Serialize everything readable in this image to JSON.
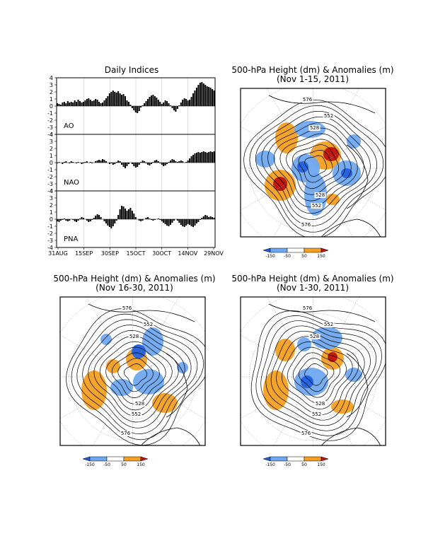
{
  "chart_data": [
    {
      "type": "bar",
      "title": "Daily Indices",
      "x_tick_labels": [
        "31AUG",
        "15SEP",
        "30SEP",
        "15OCT",
        "30OCT",
        "14NOV",
        "29NOV"
      ],
      "ylim": [
        -4,
        4
      ],
      "y_tick_labels": [
        "4",
        "3",
        "2",
        "1",
        "0",
        "-1",
        "-2",
        "-3",
        "-4"
      ],
      "grid": true,
      "series": [
        {
          "name": "AO",
          "values": [
            0.4,
            0.3,
            0.2,
            0.5,
            0.6,
            0.4,
            0.7,
            0.5,
            0.6,
            0.5,
            0.8,
            0.6,
            0.9,
            0.7,
            0.5,
            0.6,
            0.8,
            1.0,
            1.1,
            0.9,
            0.7,
            0.8,
            1.0,
            0.9,
            0.6,
            0.4,
            0.5,
            0.8,
            1.1,
            1.4,
            1.8,
            2.0,
            2.2,
            2.0,
            1.9,
            2.1,
            1.8,
            1.6,
            1.7,
            1.4,
            0.8,
            0.6,
            0.2,
            -0.3,
            -0.6,
            -0.9,
            -1.0,
            -0.7,
            -0.2,
            0.1,
            0.4,
            0.7,
            1.0,
            1.3,
            1.5,
            1.6,
            1.4,
            1.2,
            0.9,
            0.6,
            0.3,
            0.5,
            0.8,
            0.7,
            0.4,
            0.1,
            -0.3,
            -0.6,
            -0.8,
            -0.4,
            0.1,
            0.5,
            0.9,
            1.1,
            1.0,
            0.8,
            0.9,
            1.3,
            1.8,
            2.2,
            2.6,
            3.0,
            3.3,
            3.4,
            3.2,
            3.0,
            2.8,
            2.7,
            2.6,
            2.4,
            2.2
          ]
        },
        {
          "name": "NAO",
          "values": [
            -0.1,
            0.1,
            0.0,
            -0.2,
            0.1,
            0.2,
            0.0,
            -0.1,
            0.2,
            0.1,
            0.0,
            -0.1,
            0.1,
            0.0,
            -0.2,
            -0.1,
            0.1,
            0.2,
            0.0,
            0.1,
            -0.1,
            0.0,
            0.2,
            0.3,
            0.4,
            0.3,
            0.5,
            0.4,
            0.2,
            0.0,
            -0.2,
            -0.1,
            -0.3,
            -0.2,
            0.1,
            0.3,
            0.2,
            -0.3,
            -0.6,
            -0.8,
            -0.5,
            -0.2,
            0.0,
            -0.2,
            -0.5,
            -0.7,
            -0.6,
            -0.3,
            0.1,
            0.3,
            0.2,
            -0.1,
            -0.3,
            -0.4,
            -0.2,
            0.1,
            0.3,
            0.4,
            0.2,
            -0.1,
            -0.3,
            -0.5,
            -0.4,
            -0.2,
            0.1,
            0.3,
            0.5,
            0.4,
            0.2,
            0.1,
            0.2,
            0.3,
            0.2,
            0.0,
            0.1,
            0.3,
            0.6,
            0.9,
            1.1,
            1.3,
            1.4,
            1.5,
            1.4,
            1.5,
            1.6,
            1.5,
            1.4,
            1.5,
            1.6,
            1.5,
            1.6
          ]
        },
        {
          "name": "PNA",
          "values": [
            -0.3,
            -0.4,
            -0.2,
            -0.1,
            0.1,
            -0.2,
            -0.3,
            -0.2,
            0.0,
            -0.1,
            -0.3,
            -0.4,
            -0.2,
            0.1,
            0.3,
            0.2,
            0.0,
            -0.2,
            -0.4,
            -0.3,
            -0.1,
            0.2,
            0.5,
            0.7,
            0.6,
            0.3,
            0.0,
            -0.3,
            -0.6,
            -0.9,
            -1.1,
            -1.3,
            -1.0,
            -0.6,
            -0.2,
            0.6,
            1.4,
            1.9,
            1.8,
            1.5,
            1.2,
            1.4,
            1.6,
            1.2,
            0.8,
            0.3,
            0.0,
            -0.2,
            -0.3,
            -0.2,
            0.0,
            0.2,
            0.3,
            0.1,
            -0.1,
            -0.2,
            -0.1,
            0.0,
            0.1,
            -0.1,
            -0.3,
            -0.5,
            -0.7,
            -0.9,
            -1.0,
            -0.8,
            -0.5,
            -0.2,
            0.0,
            -0.2,
            -0.5,
            -0.8,
            -1.0,
            -1.1,
            -0.9,
            -0.7,
            -0.8,
            -1.0,
            -1.1,
            -0.9,
            -0.6,
            -0.4,
            -0.1,
            0.2,
            0.4,
            0.6,
            0.5,
            0.3,
            0.4,
            0.3,
            0.2
          ]
        }
      ]
    },
    {
      "type": "heatmap",
      "title": "500-hPa Height (dm) & Anomalies (m)",
      "subtitle": "(Nov 1-15, 2011)",
      "contour_labels": [
        "576",
        "552",
        "528",
        "528",
        "552",
        "576"
      ],
      "colorbar": {
        "labels": [
          "-150",
          "-50",
          "50",
          "150"
        ],
        "colors": [
          "#2060e0",
          "#6fa8f0",
          "#ffffff",
          "#f4a020",
          "#c01010"
        ]
      }
    },
    {
      "type": "heatmap",
      "title": "500-hPa Height (dm) & Anomalies (m)",
      "subtitle": "(Nov 16-30, 2011)",
      "contour_labels": [
        "576",
        "552",
        "528",
        "528",
        "552",
        "576"
      ],
      "colorbar": {
        "labels": [
          "-150",
          "-50",
          "50",
          "150"
        ],
        "colors": [
          "#2060e0",
          "#6fa8f0",
          "#ffffff",
          "#f4a020",
          "#c01010"
        ]
      }
    },
    {
      "type": "heatmap",
      "title": "500-hPa Height (dm) & Anomalies (m)",
      "subtitle": "(Nov 1-30, 2011)",
      "contour_labels": [
        "576",
        "552",
        "528",
        "528",
        "552",
        "576"
      ],
      "colorbar": {
        "labels": [
          "-150",
          "-50",
          "50",
          "150"
        ],
        "colors": [
          "#2060e0",
          "#6fa8f0",
          "#ffffff",
          "#f4a020",
          "#c01010"
        ]
      }
    }
  ],
  "colors": {
    "positive": "#f4a020",
    "strong_positive": "#c01010",
    "negative": "#6fa8f0",
    "strong_negative": "#2060e0"
  }
}
